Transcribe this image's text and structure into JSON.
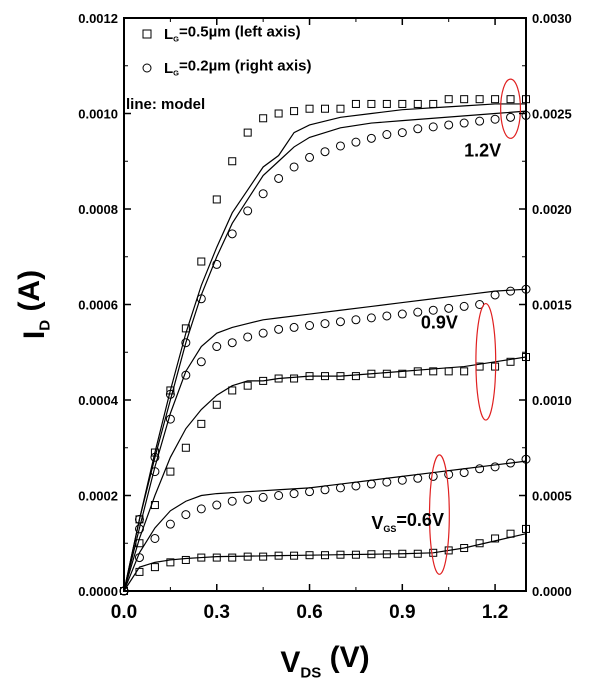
{
  "chart_data": {
    "type": "scatter",
    "xlabel": {
      "main": "V",
      "sub": "DS",
      "unit": " (V)"
    },
    "ylabel": {
      "main": "I",
      "sub": "D",
      "unit": " (A)"
    },
    "xlim": [
      0,
      1.3
    ],
    "ylim_left": [
      0,
      0.0012
    ],
    "ylim_right": [
      0,
      0.003
    ],
    "x_ticks": [
      "0.0",
      "0.3",
      "0.6",
      "0.9",
      "1.2"
    ],
    "x_tick_values": [
      0,
      0.3,
      0.6,
      0.9,
      1.2
    ],
    "y_ticks_left": [
      "0.0000",
      "0.0002",
      "0.0004",
      "0.0006",
      "0.0008",
      "0.0010",
      "0.0012"
    ],
    "y_tick_values_left": [
      0,
      0.0002,
      0.0004,
      0.0006,
      0.0008,
      0.001,
      0.0012
    ],
    "y_ticks_right": [
      "0.0000",
      "0.0005",
      "0.0010",
      "0.0015",
      "0.0020",
      "0.0025",
      "0.0030"
    ],
    "y_tick_values_right": [
      0,
      0.0005,
      0.001,
      0.0015,
      0.002,
      0.0025,
      0.003
    ],
    "legend": [
      {
        "marker": "square",
        "prefix": "L",
        "sub": "G",
        "text": "=0.5µm (left axis)"
      },
      {
        "marker": "circle",
        "prefix": "L",
        "sub": "G",
        "text": "=0.2µm (right axis)"
      },
      {
        "marker": "none",
        "text": "line: model"
      }
    ],
    "annotations": [
      {
        "text": "1.2V",
        "x": 1.1,
        "y_left": 0.00091
      },
      {
        "text": "0.9V",
        "x": 0.96,
        "y_left": 0.00055
      },
      {
        "prefix": "V",
        "sub": "GS",
        "text": "=0.6V",
        "x": 0.8,
        "y_left": 0.00013
      }
    ],
    "highlight_ellipses": [
      {
        "cx": 1.25,
        "cy_left": 0.00101,
        "rx_data": 0.032,
        "ry_data": 6.2e-05
      },
      {
        "cx": 1.17,
        "cy_left": 0.00048,
        "rx_data": 0.032,
        "ry_data": 0.000122
      },
      {
        "cx": 1.02,
        "cy_left": 0.00016,
        "rx_data": 0.032,
        "ry_data": 0.000125
      }
    ],
    "series": [
      {
        "name": "LG=0.5µm VGS=1.2V",
        "marker": "square",
        "axis": "left",
        "vgs": "1.2",
        "x": [
          0,
          0.05,
          0.1,
          0.15,
          0.2,
          0.25,
          0.3,
          0.35,
          0.4,
          0.45,
          0.5,
          0.55,
          0.6,
          0.65,
          0.7,
          0.75,
          0.8,
          0.85,
          0.9,
          0.95,
          1.0,
          1.05,
          1.1,
          1.15,
          1.2,
          1.25,
          1.3
        ],
        "y": [
          0,
          0.00015,
          0.00029,
          0.00042,
          0.00055,
          0.00069,
          0.00082,
          0.0009,
          0.00096,
          0.00099,
          0.001,
          0.001005,
          0.00101,
          0.00101,
          0.00101,
          0.00102,
          0.00102,
          0.00102,
          0.00102,
          0.00102,
          0.00102,
          0.00103,
          0.00103,
          0.00103,
          0.00103,
          0.00103,
          0.00103
        ]
      },
      {
        "name": "LG=0.2µm VGS=1.2V",
        "marker": "circle",
        "axis": "right",
        "vgs": "1.2",
        "x": [
          0,
          0.05,
          0.1,
          0.15,
          0.2,
          0.25,
          0.3,
          0.35,
          0.4,
          0.45,
          0.5,
          0.55,
          0.6,
          0.65,
          0.7,
          0.75,
          0.8,
          0.85,
          0.9,
          0.95,
          1.0,
          1.05,
          1.1,
          1.15,
          1.2,
          1.25,
          1.3
        ],
        "y": [
          0,
          0.000375,
          0.0007,
          0.00103,
          0.0013,
          0.00153,
          0.00171,
          0.00187,
          0.00199,
          0.00208,
          0.00216,
          0.00222,
          0.00227,
          0.0023,
          0.00233,
          0.00235,
          0.00237,
          0.00239,
          0.0024,
          0.00242,
          0.00243,
          0.00244,
          0.00245,
          0.00246,
          0.00247,
          0.00248,
          0.00249
        ]
      },
      {
        "name": "LG=0.5µm VGS=0.9V",
        "marker": "square",
        "axis": "left",
        "vgs": "0.9",
        "x": [
          0,
          0.05,
          0.1,
          0.15,
          0.2,
          0.25,
          0.3,
          0.35,
          0.4,
          0.45,
          0.5,
          0.55,
          0.6,
          0.65,
          0.7,
          0.75,
          0.8,
          0.85,
          0.9,
          0.95,
          1.0,
          1.05,
          1.1,
          1.15,
          1.2,
          1.25,
          1.3
        ],
        "y": [
          0,
          0.0001,
          0.00018,
          0.00025,
          0.0003,
          0.00035,
          0.00039,
          0.00042,
          0.00043,
          0.00044,
          0.000445,
          0.000445,
          0.00045,
          0.00045,
          0.00045,
          0.00045,
          0.000455,
          0.000455,
          0.000455,
          0.00046,
          0.00046,
          0.00046,
          0.00046,
          0.00047,
          0.00047,
          0.00048,
          0.00049
        ]
      },
      {
        "name": "LG=0.2µm VGS=0.9V",
        "marker": "circle",
        "axis": "right",
        "vgs": "0.9",
        "x": [
          0,
          0.05,
          0.1,
          0.15,
          0.2,
          0.25,
          0.3,
          0.35,
          0.4,
          0.45,
          0.5,
          0.55,
          0.6,
          0.65,
          0.7,
          0.75,
          0.8,
          0.85,
          0.9,
          0.95,
          1.0,
          1.05,
          1.1,
          1.15,
          1.2,
          1.25,
          1.3
        ],
        "y": [
          0,
          0.000325,
          0.000625,
          0.0009,
          0.00113,
          0.0012,
          0.00128,
          0.0013,
          0.00133,
          0.00135,
          0.00137,
          0.00138,
          0.00139,
          0.0014,
          0.00141,
          0.00142,
          0.00143,
          0.00144,
          0.00145,
          0.00146,
          0.00147,
          0.00148,
          0.00149,
          0.0015,
          0.00155,
          0.00157,
          0.00158
        ]
      },
      {
        "name": "LG=0.5µm VGS=0.6V",
        "marker": "square",
        "axis": "left",
        "vgs": "0.6",
        "x": [
          0,
          0.05,
          0.1,
          0.15,
          0.2,
          0.25,
          0.3,
          0.35,
          0.4,
          0.45,
          0.5,
          0.55,
          0.6,
          0.65,
          0.7,
          0.75,
          0.8,
          0.85,
          0.9,
          0.95,
          1.0,
          1.05,
          1.1,
          1.15,
          1.2,
          1.25,
          1.3
        ],
        "y": [
          0,
          4e-05,
          5e-05,
          6e-05,
          6.5e-05,
          7e-05,
          7e-05,
          7e-05,
          7.2e-05,
          7.2e-05,
          7.4e-05,
          7.4e-05,
          7.5e-05,
          7.5e-05,
          7.6e-05,
          7.6e-05,
          7.7e-05,
          7.7e-05,
          7.8e-05,
          7.8e-05,
          8e-05,
          8.5e-05,
          9e-05,
          0.0001,
          0.00011,
          0.00012,
          0.00013
        ]
      },
      {
        "name": "LG=0.2µm VGS=0.6V",
        "marker": "circle",
        "axis": "right",
        "vgs": "0.6",
        "x": [
          0,
          0.05,
          0.1,
          0.15,
          0.2,
          0.25,
          0.3,
          0.35,
          0.4,
          0.45,
          0.5,
          0.55,
          0.6,
          0.65,
          0.7,
          0.75,
          0.8,
          0.85,
          0.9,
          0.95,
          1.0,
          1.05,
          1.1,
          1.15,
          1.2,
          1.25,
          1.3
        ],
        "y": [
          0,
          0.000175,
          0.000275,
          0.00035,
          0.0004,
          0.00043,
          0.00045,
          0.00047,
          0.00048,
          0.00049,
          0.0005,
          0.00051,
          0.00052,
          0.00053,
          0.00054,
          0.00055,
          0.00056,
          0.00057,
          0.00058,
          0.00059,
          0.0006,
          0.00061,
          0.00062,
          0.00064,
          0.00065,
          0.00067,
          0.00069
        ]
      }
    ],
    "model_lines": [
      {
        "vgs": "1.2",
        "axis": "left",
        "x": [
          0,
          0.05,
          0.1,
          0.15,
          0.2,
          0.25,
          0.3,
          0.35,
          0.4,
          0.45,
          0.5,
          0.55,
          0.6,
          0.7,
          0.8,
          0.9,
          1.0,
          1.1,
          1.2,
          1.3
        ],
        "y": [
          0,
          0.00015,
          0.00028,
          0.0004,
          0.00052,
          0.00062,
          0.0007,
          0.00077,
          0.00082,
          0.00087,
          0.0009,
          0.00093,
          0.00095,
          0.00097,
          0.00098,
          0.000985,
          0.00099,
          0.000995,
          0.001,
          0.001005
        ]
      },
      {
        "vgs": "1.2",
        "axis": "right",
        "x": [
          0,
          0.05,
          0.1,
          0.15,
          0.2,
          0.25,
          0.3,
          0.35,
          0.4,
          0.45,
          0.5,
          0.55,
          0.6,
          0.7,
          0.8,
          0.9,
          1.0,
          1.1,
          1.2,
          1.3
        ],
        "y": [
          0,
          0.000375,
          0.000725,
          0.00105,
          0.00135,
          0.0016,
          0.0018,
          0.00198,
          0.0021,
          0.00222,
          0.00228,
          0.0024,
          0.00244,
          0.00248,
          0.0025,
          0.00252,
          0.00253,
          0.00254,
          0.00255,
          0.00255
        ]
      },
      {
        "vgs": "0.9",
        "axis": "left",
        "x": [
          0,
          0.05,
          0.1,
          0.15,
          0.2,
          0.25,
          0.3,
          0.35,
          0.4,
          0.45,
          0.5,
          0.6,
          0.7,
          0.8,
          0.9,
          1.0,
          1.1,
          1.2,
          1.3
        ],
        "y": [
          0,
          0.00011,
          0.0002,
          0.00028,
          0.00034,
          0.00038,
          0.00041,
          0.00043,
          0.00044,
          0.00044,
          0.000445,
          0.00045,
          0.00045,
          0.000455,
          0.00046,
          0.000465,
          0.00047,
          0.00048,
          0.00049
        ]
      },
      {
        "vgs": "0.9",
        "axis": "right",
        "x": [
          0,
          0.05,
          0.1,
          0.15,
          0.2,
          0.25,
          0.3,
          0.35,
          0.4,
          0.45,
          0.5,
          0.6,
          0.7,
          0.8,
          0.9,
          1.0,
          1.1,
          1.2,
          1.3
        ],
        "y": [
          0,
          0.00033,
          0.00065,
          0.00093,
          0.00115,
          0.00128,
          0.00135,
          0.00138,
          0.0014,
          0.00142,
          0.00143,
          0.00145,
          0.00147,
          0.00149,
          0.00151,
          0.00153,
          0.00155,
          0.00157,
          0.00158
        ]
      },
      {
        "vgs": "0.6",
        "axis": "left",
        "x": [
          0,
          0.05,
          0.1,
          0.15,
          0.2,
          0.25,
          0.3,
          0.4,
          0.5,
          0.6,
          0.7,
          0.8,
          0.9,
          1.0,
          1.1,
          1.2,
          1.3
        ],
        "y": [
          0,
          5e-05,
          6e-05,
          6.5e-05,
          6.8e-05,
          7e-05,
          7.2e-05,
          7.3e-05,
          7.4e-05,
          7.5e-05,
          7.6e-05,
          7.7e-05,
          7.8e-05,
          8e-05,
          9e-05,
          0.000105,
          0.00012
        ]
      },
      {
        "vgs": "0.6",
        "axis": "right",
        "x": [
          0,
          0.05,
          0.1,
          0.15,
          0.2,
          0.25,
          0.3,
          0.4,
          0.5,
          0.6,
          0.7,
          0.8,
          0.9,
          1.0,
          1.1,
          1.2,
          1.3
        ],
        "y": [
          0,
          0.0002,
          0.00033,
          0.00042,
          0.00047,
          0.0005,
          0.00051,
          0.00052,
          0.00053,
          0.00054,
          0.00056,
          0.00058,
          0.0006,
          0.00062,
          0.00064,
          0.00066,
          0.00068
        ]
      }
    ]
  }
}
